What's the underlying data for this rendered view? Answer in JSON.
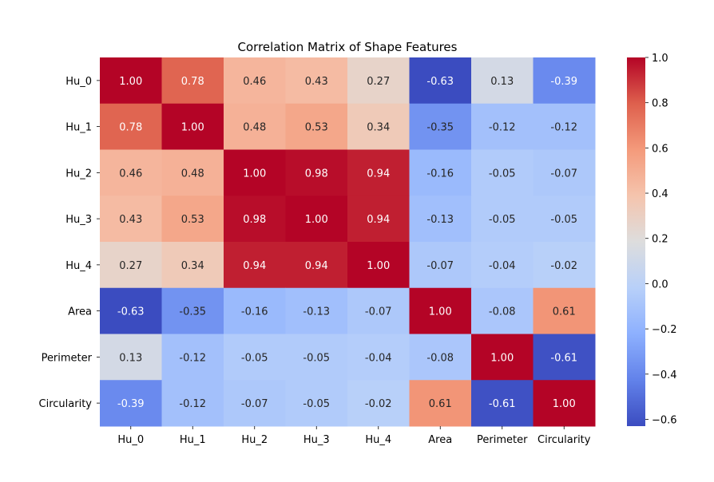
{
  "chart_data": {
    "type": "heatmap",
    "title": "Correlation Matrix of Shape Features",
    "xlabel": "",
    "ylabel": "",
    "row_labels": [
      "Hu_0",
      "Hu_1",
      "Hu_2",
      "Hu_3",
      "Hu_4",
      "Area",
      "Perimeter",
      "Circularity"
    ],
    "col_labels": [
      "Hu_0",
      "Hu_1",
      "Hu_2",
      "Hu_3",
      "Hu_4",
      "Area",
      "Perimeter",
      "Circularity"
    ],
    "values": [
      [
        1.0,
        0.78,
        0.46,
        0.43,
        0.27,
        -0.63,
        0.13,
        -0.39
      ],
      [
        0.78,
        1.0,
        0.48,
        0.53,
        0.34,
        -0.35,
        -0.12,
        -0.12
      ],
      [
        0.46,
        0.48,
        1.0,
        0.98,
        0.94,
        -0.16,
        -0.05,
        -0.07
      ],
      [
        0.43,
        0.53,
        0.98,
        1.0,
        0.94,
        -0.13,
        -0.05,
        -0.05
      ],
      [
        0.27,
        0.34,
        0.94,
        0.94,
        1.0,
        -0.07,
        -0.04,
        -0.02
      ],
      [
        -0.63,
        -0.35,
        -0.16,
        -0.13,
        -0.07,
        1.0,
        -0.08,
        0.61
      ],
      [
        0.13,
        -0.12,
        -0.05,
        -0.05,
        -0.04,
        -0.08,
        1.0,
        -0.61
      ],
      [
        -0.39,
        -0.12,
        -0.07,
        -0.05,
        -0.02,
        0.61,
        -0.61,
        1.0
      ]
    ],
    "annotation_format": "0.00",
    "colormap": "coolwarm",
    "vmin": -0.63,
    "vmax": 1.0,
    "colorbar": {
      "ticks": [
        -0.6,
        -0.4,
        -0.2,
        0.0,
        0.2,
        0.4,
        0.6,
        0.8,
        1.0
      ],
      "tick_labels": [
        "−0.6",
        "−0.4",
        "−0.2",
        "0.0",
        "0.2",
        "0.4",
        "0.6",
        "0.8",
        "1.0"
      ]
    },
    "grid": false,
    "legend": "colorbar-right"
  }
}
